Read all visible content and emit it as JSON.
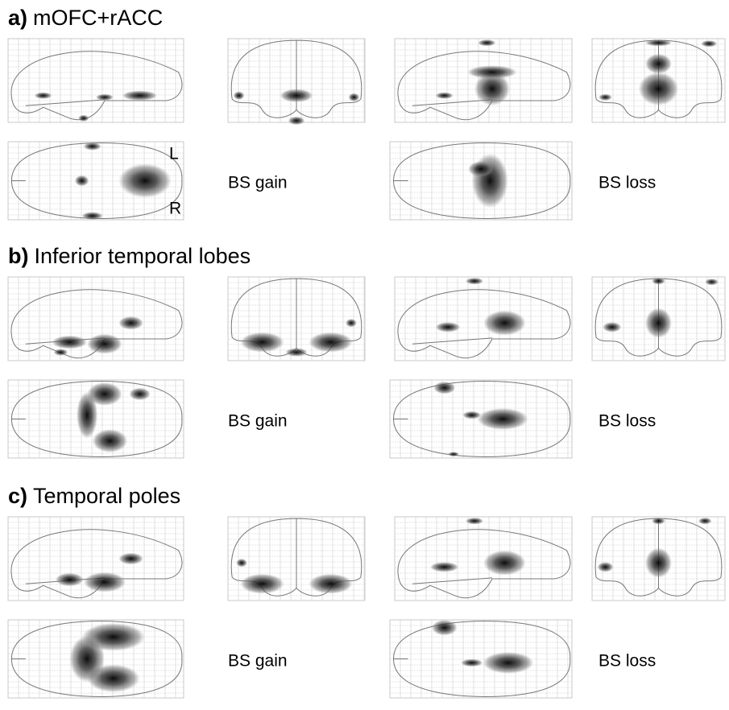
{
  "panels": [
    {
      "letter": "a)",
      "title": "mOFC+rACC",
      "gain_label": "BS gain",
      "loss_label": "BS loss"
    },
    {
      "letter": "b)",
      "title": "Inferior temporal lobes",
      "gain_label": "BS gain",
      "loss_label": "BS loss"
    },
    {
      "letter": "c)",
      "title": "Temporal poles",
      "gain_label": "BS gain",
      "loss_label": "BS loss"
    }
  ],
  "orientation": {
    "left": "L",
    "right": "R"
  }
}
